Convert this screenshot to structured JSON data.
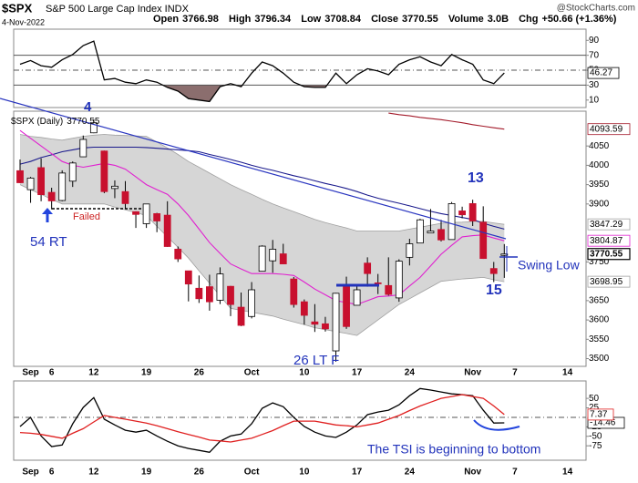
{
  "header": {
    "symbol": "$SPX",
    "name": "S&P 500 Large Cap Index INDX",
    "date": "4-Nov-2022",
    "copyright": "@StockCharts.com",
    "quote": [
      {
        "label": "Open",
        "value": 3766.98
      },
      {
        "label": "High",
        "value": 3796.34
      },
      {
        "label": "Low",
        "value": 3708.84
      },
      {
        "label": "Close",
        "value": 3770.55
      },
      {
        "label": "Volume",
        "value": "3.0B"
      },
      {
        "label": "Chg",
        "value": "+50.66 (+1.36%)"
      }
    ]
  },
  "chart_data": [
    {
      "type": "line",
      "ylim": [
        0,
        105
      ],
      "yticks": [
        10,
        30,
        50,
        70,
        90
      ],
      "levels": [
        70,
        30
      ],
      "midline": 50,
      "fill_color": "#8b6e6e",
      "series": [
        {
          "color": "#000000",
          "last_label": true,
          "values": [
            58,
            63,
            56,
            54,
            64,
            71,
            83,
            89,
            37,
            39,
            34,
            32,
            37,
            34,
            27,
            22,
            12,
            10,
            8,
            28,
            32,
            28,
            46,
            61,
            56,
            46,
            34,
            28,
            27,
            27,
            46,
            32,
            44,
            52,
            49,
            44,
            58,
            64,
            68,
            61,
            56,
            71,
            64,
            58,
            37,
            32,
            46.27,
            null,
            null,
            null,
            null,
            null,
            null
          ]
        }
      ]
    },
    {
      "type": "candlestick",
      "legend": "$SPX (Daily)",
      "up_color": "#ffffff",
      "down_color": "#c8102e",
      "ylim": [
        3480,
        4140
      ],
      "yticks": [
        3500,
        3550,
        3600,
        3650,
        3750,
        3900,
        3950,
        4000,
        4050
      ],
      "categories": [
        null,
        "Sep",
        null,
        "6",
        null,
        null,
        null,
        "12",
        null,
        null,
        null,
        null,
        "19",
        null,
        null,
        null,
        null,
        "26",
        null,
        null,
        null,
        null,
        "Oct",
        null,
        null,
        null,
        null,
        "10",
        null,
        null,
        null,
        null,
        "17",
        null,
        null,
        null,
        null,
        "24",
        null,
        null,
        null,
        null,
        null,
        "Nov",
        null,
        null,
        null,
        "7",
        null,
        null,
        null,
        null,
        "14"
      ],
      "open": [
        3986,
        3937,
        3994,
        3930,
        3909,
        3959,
        4022,
        4084,
        4037,
        3940,
        3932,
        3880,
        3849,
        3875,
        3871,
        3783,
        3727,
        3682,
        3686,
        3651,
        3687,
        3633,
        3609,
        3726,
        3753,
        3771,
        3706,
        3647,
        3595,
        3590,
        3520,
        3690,
        3638,
        3747,
        3696,
        3689,
        3657,
        3762,
        3799,
        3825,
        3834,
        3808,
        3882,
        3901,
        3853,
        3733,
        3766.98,
        null,
        null,
        null,
        null,
        null,
        null
      ],
      "high": [
        4015,
        3970,
        4018,
        3942,
        3987,
        4010,
        4077,
        4119,
        4038,
        3961,
        3959,
        3881,
        3900,
        3877,
        3907,
        3790,
        3727,
        3715,
        3717,
        3736,
        3688,
        3671,
        3698,
        3793,
        3807,
        3797,
        3711,
        3653,
        3641,
        3608,
        3670,
        3712,
        3689,
        3762,
        3719,
        3762,
        3757,
        3810,
        3862,
        3887,
        3859,
        3905,
        3893,
        3911,
        3894,
        3750,
        3796.34,
        null,
        null,
        null,
        null,
        null,
        null
      ],
      "low": [
        3954,
        3903,
        3907,
        3886,
        3907,
        3944,
        4022,
        4083,
        3928,
        3915,
        3889,
        3838,
        3838,
        3827,
        3789,
        3750,
        3648,
        3644,
        3624,
        3641,
        3610,
        3584,
        3604,
        3726,
        3722,
        3744,
        3632,
        3588,
        3569,
        3570,
        3492,
        3577,
        3638,
        3686,
        3667,
        3663,
        3647,
        3741,
        3799,
        3825,
        3803,
        3808,
        3863,
        3843,
        3758,
        3698,
        3708.84,
        null,
        null,
        null,
        null,
        null,
        null
      ],
      "close": [
        3955,
        3967,
        3924,
        3908,
        3980,
        4006,
        4067,
        4110,
        3932,
        3946,
        3901,
        3873,
        3900,
        3856,
        3790,
        3758,
        3693,
        3655,
        3647,
        3719,
        3640,
        3586,
        3678,
        3791,
        3783,
        3745,
        3640,
        3612,
        3589,
        3577,
        3669,
        3583,
        3678,
        3720,
        3695,
        3666,
        3752,
        3797,
        3859,
        3830,
        3807,
        3901,
        3872,
        3856,
        3759,
        3720,
        3770.55,
        null,
        null,
        null,
        null,
        null,
        null
      ],
      "band": {
        "color": "#d6d6d6",
        "edge_color": "#a0a0a0",
        "last_label": true,
        "upper": [
          4080,
          4075,
          4072,
          4068,
          4065,
          4070,
          4075,
          4078,
          4080,
          4078,
          4077,
          4076,
          4075,
          4060,
          4045,
          4028,
          4010,
          3995,
          3980,
          3965,
          3950,
          3937,
          3925,
          3912,
          3900,
          3890,
          3880,
          3870,
          3860,
          3852,
          3845,
          3838,
          3830,
          3830,
          3830,
          3830,
          3830,
          3835,
          3840,
          3845,
          3850,
          3852,
          3853,
          3855,
          3855,
          3851,
          3847.29,
          null,
          null,
          null,
          null,
          null,
          null
        ],
        "lower": [
          3950,
          3937,
          3925,
          3912,
          3900,
          3900,
          3900,
          3900,
          3900,
          3892,
          3885,
          3878,
          3870,
          3842,
          3815,
          3788,
          3760,
          3727,
          3695,
          3662,
          3630,
          3625,
          3620,
          3615,
          3610,
          3602,
          3595,
          3588,
          3580,
          3575,
          3570,
          3565,
          3560,
          3580,
          3600,
          3620,
          3640,
          3655,
          3670,
          3685,
          3700,
          3703,
          3706,
          3708,
          3710,
          3704,
          3698.95,
          null,
          null,
          null,
          null,
          null,
          null
        ]
      },
      "series": [
        {
          "color": "#1a1a8c",
          "values": [
            4003,
            4010,
            4020,
            4027,
            4035,
            4040,
            4045,
            4047,
            4047,
            4047,
            4047,
            4047,
            4046,
            4044,
            4042,
            4040,
            4038,
            4035,
            4028,
            4022,
            4015,
            4008,
            4000,
            3993,
            3987,
            3980,
            3973,
            3967,
            3960,
            3953,
            3947,
            3940,
            3932,
            3923,
            3915,
            3908,
            3902,
            3895,
            3888,
            3881,
            3875,
            3870,
            3865,
            3860,
            3850,
            3842,
            3835,
            null,
            null,
            null,
            null,
            null,
            null
          ]
        },
        {
          "color": "#a31a2a",
          "last_label": true,
          "values": [
            null,
            null,
            null,
            null,
            null,
            null,
            null,
            null,
            null,
            null,
            null,
            null,
            null,
            null,
            null,
            null,
            null,
            null,
            null,
            null,
            null,
            null,
            null,
            null,
            null,
            null,
            null,
            null,
            null,
            null,
            null,
            null,
            null,
            null,
            null,
            4135,
            4131,
            4128,
            4124,
            4121,
            4118,
            4114,
            4110,
            4105,
            4101,
            4097,
            4093.59,
            null,
            null,
            null,
            null,
            null,
            null
          ]
        },
        {
          "color": "#e020d0",
          "last_label": true,
          "values": [
            4090,
            4070,
            4050,
            4030,
            4010,
            4000,
            3995,
            4000,
            4005,
            4000,
            3990,
            3970,
            3950,
            3937,
            3925,
            3900,
            3870,
            3835,
            3800,
            3772,
            3745,
            3732,
            3720,
            3720,
            3720,
            3718,
            3715,
            3698,
            3680,
            3665,
            3650,
            3645,
            3640,
            3650,
            3660,
            3662,
            3665,
            3688,
            3710,
            3740,
            3770,
            3793,
            3815,
            3818,
            3820,
            3812,
            3804.87,
            null,
            null,
            null,
            null,
            null,
            null
          ]
        }
      ],
      "annotations": [
        "4",
        "54 RT",
        "Failed",
        "13",
        "15",
        "26 LT F",
        "Swing Low"
      ]
    },
    {
      "type": "line",
      "ylim": [
        -113,
        96
      ],
      "yticks": [
        50,
        25,
        -25,
        -50,
        -75
      ],
      "zero_line": 0,
      "categories": [
        null,
        "Sep",
        null,
        "6",
        null,
        null,
        null,
        "12",
        null,
        null,
        null,
        null,
        "19",
        null,
        null,
        null,
        null,
        "26",
        null,
        null,
        null,
        null,
        "Oct",
        null,
        null,
        null,
        null,
        "10",
        null,
        null,
        null,
        null,
        "17",
        null,
        null,
        null,
        null,
        "24",
        null,
        null,
        null,
        null,
        null,
        "Nov",
        null,
        null,
        null,
        "7",
        null,
        null,
        null,
        null,
        "14"
      ],
      "series": [
        {
          "color": "#000000",
          "last_label": true,
          "values": [
            -24,
            0,
            -49,
            -77,
            -73,
            -17,
            26,
            52,
            -5,
            -20,
            -34,
            -39,
            -34,
            -49,
            -63,
            -75,
            -82,
            -87,
            -92,
            -63,
            -49,
            -44,
            -17,
            24,
            38,
            28,
            0,
            -24,
            -39,
            -49,
            -53,
            -39,
            -20,
            7,
            14,
            19,
            33,
            57,
            76,
            72,
            67,
            62,
            60,
            57,
            19,
            -15,
            -14.46,
            null,
            null,
            null,
            null,
            null,
            null
          ]
        },
        {
          "color": "#e02020",
          "last_label": true,
          "values": [
            -40,
            -42,
            -45,
            -50,
            -55,
            -42,
            -30,
            -12,
            5,
            0,
            -5,
            -10,
            -15,
            -22,
            -30,
            -38,
            -45,
            -52,
            -60,
            -62,
            -65,
            -60,
            -55,
            -45,
            -35,
            -22,
            -10,
            -10,
            -10,
            -15,
            -20,
            -22,
            -25,
            -20,
            -15,
            -5,
            5,
            18,
            30,
            40,
            50,
            55,
            60,
            55,
            50,
            30,
            7.37,
            null,
            null,
            null,
            null,
            null,
            null
          ]
        }
      ],
      "annotations": [
        "The TSI is beginning to bottom"
      ]
    }
  ]
}
